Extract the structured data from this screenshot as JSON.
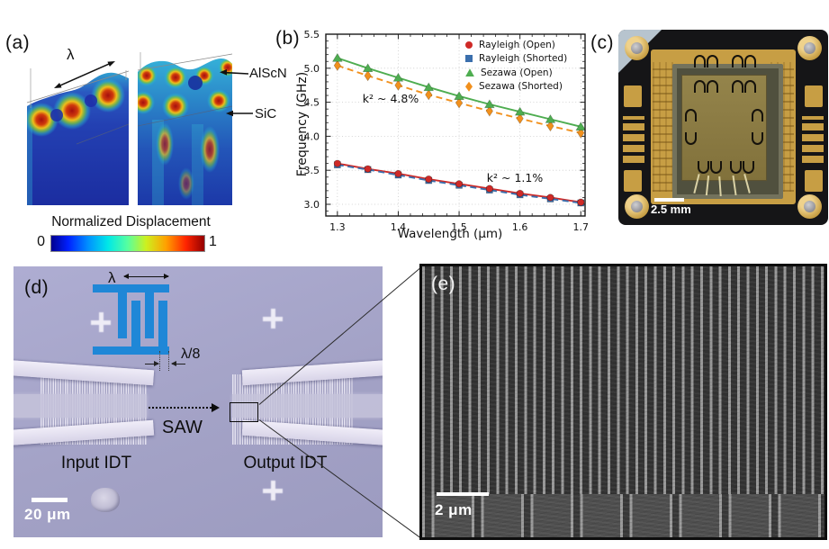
{
  "colors": {
    "rayleigh_open": "#cf2a27",
    "rayleigh_shorted": "#3b6fad",
    "sezawa_open": "#4ead50",
    "sezawa_shorted": "#f1901d",
    "micrograph_background": "#a3a2c6",
    "idt_schematic_blue": "#1f87d7",
    "package_gold": "#c79e44"
  },
  "panel_a": {
    "label": "(a)",
    "wavelength_symbol": "λ",
    "annotation_top_layer": "AlScN",
    "annotation_bottom_layer": "SiC",
    "colorbar_title": "Normalized Displacement",
    "colorbar_min": "0",
    "colorbar_max": "1"
  },
  "panel_b": {
    "label": "(b)"
  },
  "panel_c": {
    "label": "(c)",
    "scale_bar": "2.5 mm"
  },
  "panel_d": {
    "label": "(d)",
    "wavelength_symbol": "λ",
    "pitch_label": "λ/8",
    "wave_label": "SAW",
    "input_label": "Input IDT",
    "output_label": "Output IDT",
    "scale_bar": "20 μm"
  },
  "panel_e": {
    "label": "(e)",
    "scale_bar": "2 μm"
  },
  "chart_data": {
    "type": "line",
    "title": "",
    "xlabel": "Wavelength (μm)",
    "ylabel": "Frequency (GHz)",
    "xlim": [
      1.281,
      1.707
    ],
    "ylim": [
      2.828,
      5.5
    ],
    "x_ticks": [
      1.3,
      1.4,
      1.5,
      1.6,
      1.7
    ],
    "y_ticks": [
      3.0,
      3.5,
      4.0,
      4.5,
      5.0,
      5.5
    ],
    "x_minor_step": 0.02,
    "y_minor_step": 0.1,
    "grid": true,
    "legend_position": "upper right",
    "x": [
      1.3,
      1.35,
      1.4,
      1.45,
      1.5,
      1.55,
      1.6,
      1.65,
      1.7
    ],
    "series": [
      {
        "name": "Rayleigh (Open)",
        "marker": "circle",
        "line": "solid",
        "color": "#cf2a27",
        "values": [
          3.6,
          3.52,
          3.45,
          3.37,
          3.3,
          3.23,
          3.16,
          3.1,
          3.03
        ]
      },
      {
        "name": "Rayleigh (Shorted)",
        "marker": "square",
        "line": "dashed",
        "color": "#3b6fad",
        "values": [
          3.58,
          3.51,
          3.43,
          3.35,
          3.28,
          3.21,
          3.14,
          3.08,
          3.02
        ]
      },
      {
        "name": "Sezawa (Open)",
        "marker": "triangle",
        "line": "solid",
        "color": "#4ead50",
        "values": [
          5.15,
          5.0,
          4.86,
          4.72,
          4.59,
          4.47,
          4.36,
          4.25,
          4.14
        ]
      },
      {
        "name": "Sezawa (Shorted)",
        "marker": "diamond",
        "line": "dashed",
        "color": "#f1901d",
        "values": [
          5.04,
          4.89,
          4.75,
          4.61,
          4.49,
          4.37,
          4.26,
          4.15,
          4.05
        ]
      }
    ],
    "annotations": [
      {
        "text": "k² ~ 4.8%",
        "x": 1.385,
        "y": 4.55
      },
      {
        "text": "k² ~ 1.1%",
        "x": 1.59,
        "y": 3.38
      }
    ]
  }
}
